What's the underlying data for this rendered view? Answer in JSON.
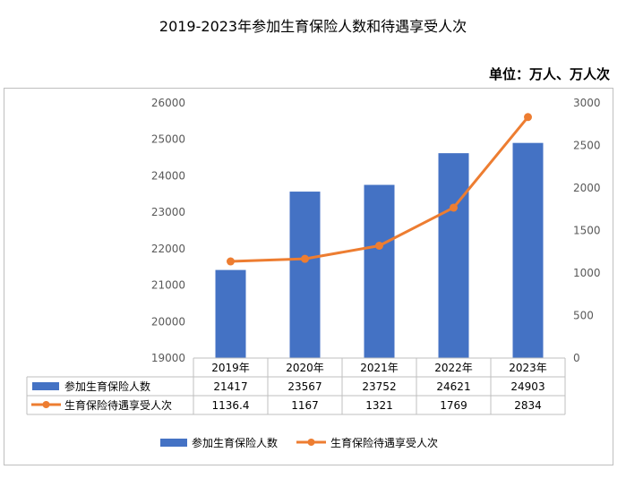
{
  "chart_data": {
    "type": "bar",
    "title": "2019-2023年参加生育保险人数和待遇享受人次",
    "unit_label": "单位：万人、万人次",
    "categories": [
      "2019年",
      "2020年",
      "2021年",
      "2022年",
      "2023年"
    ],
    "series": [
      {
        "name": "参加生育保险人数",
        "type": "bar",
        "axis": "left",
        "color": "#4472C4",
        "values": [
          21417,
          23567,
          23752,
          24621,
          24903
        ],
        "table_values": [
          "21417",
          "23567",
          "23752",
          "24621",
          "24903"
        ]
      },
      {
        "name": "生育保险待遇享受人次",
        "type": "line",
        "axis": "right",
        "color": "#ED7D31",
        "values": [
          1136.4,
          1167,
          1321,
          1769,
          2834
        ],
        "table_values": [
          "1136.4",
          "1167",
          "1321",
          "1769",
          "2834"
        ]
      }
    ],
    "ylim_left": [
      19000,
      26000
    ],
    "yticks_left": [
      "19000",
      "20000",
      "21000",
      "22000",
      "23000",
      "24000",
      "25000",
      "26000"
    ],
    "ylim_right": [
      0,
      3000
    ],
    "yticks_right": [
      "0",
      "500",
      "1000",
      "1500",
      "2000",
      "2500",
      "3000"
    ],
    "grid": false,
    "legend_position": "bottom",
    "data_table": true
  }
}
